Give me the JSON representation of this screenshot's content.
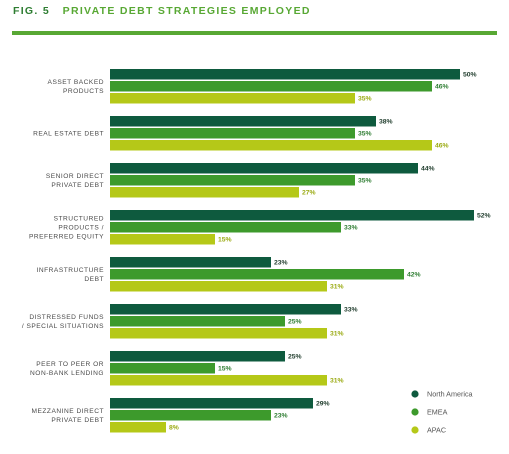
{
  "figure": {
    "number": "FIG. 5",
    "title": "PRIVATE DEBT STRATEGIES EMPLOYED"
  },
  "colors": {
    "North America": "#0e5a3e",
    "EMEA": "#3d9a2c",
    "APAC": "#b5c818"
  },
  "chart_data": {
    "type": "bar",
    "orientation": "horizontal",
    "title": "PRIVATE DEBT STRATEGIES EMPLOYED",
    "xlabel": "",
    "ylabel": "",
    "xlim": [
      0,
      52
    ],
    "grid": false,
    "legend_position": "bottom-right",
    "categories": [
      [
        "ASSET BACKED",
        "PRODUCTS"
      ],
      [
        "REAL ESTATE DEBT"
      ],
      [
        "SENIOR DIRECT",
        "PRIVATE DEBT"
      ],
      [
        "STRUCTURED",
        "PRODUCTS /",
        "PREFERRED EQUITY"
      ],
      [
        "INFRASTRUCTURE",
        "DEBT"
      ],
      [
        "DISTRESSED FUNDS",
        "/ SPECIAL SITUATIONS"
      ],
      [
        "PEER TO PEER OR",
        "NON-BANK LENDING"
      ],
      [
        "MEZZANINE DIRECT",
        "PRIVATE DEBT"
      ]
    ],
    "series": [
      {
        "name": "North America",
        "values": [
          50,
          38,
          44,
          52,
          23,
          33,
          25,
          29
        ]
      },
      {
        "name": "EMEA",
        "values": [
          46,
          35,
          35,
          33,
          42,
          25,
          15,
          23
        ]
      },
      {
        "name": "APAC",
        "values": [
          35,
          46,
          27,
          15,
          31,
          31,
          31,
          8
        ]
      }
    ],
    "value_suffix": "%"
  }
}
